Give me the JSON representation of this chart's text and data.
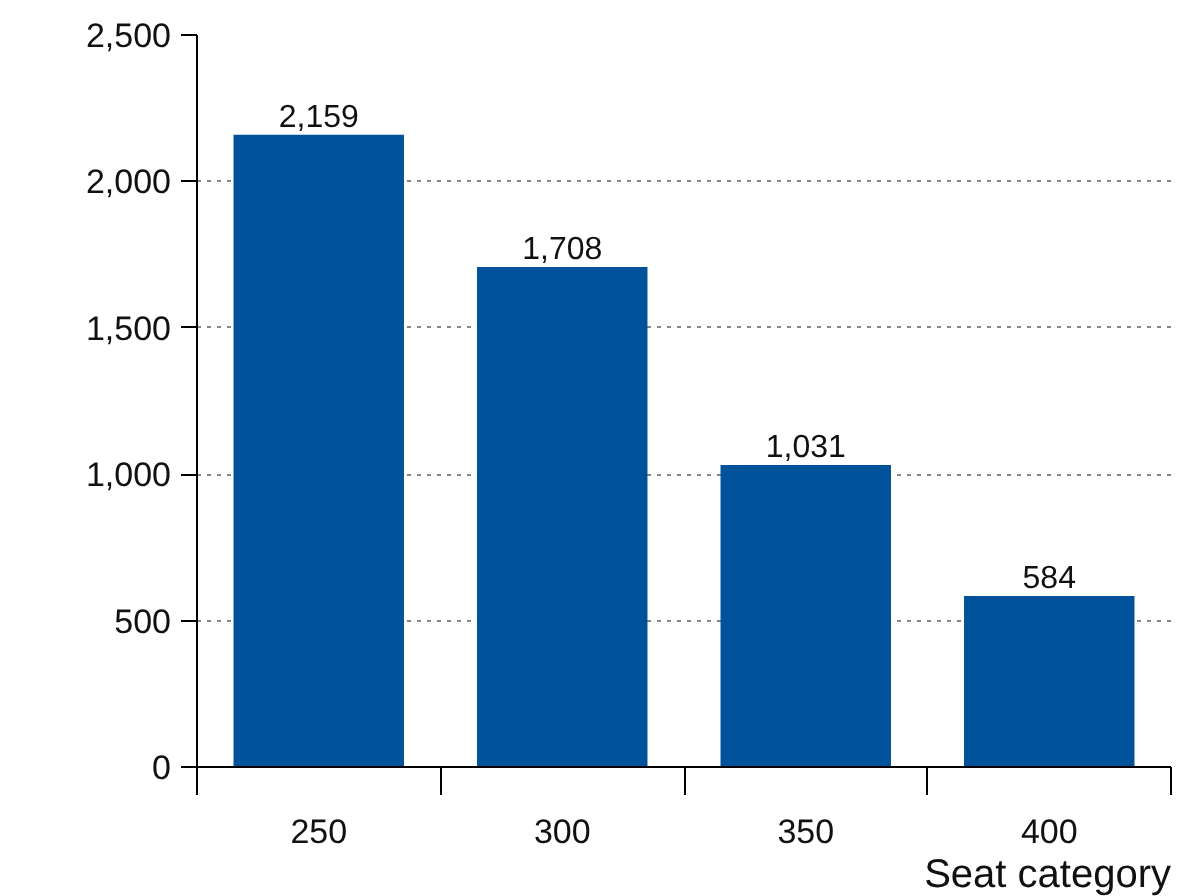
{
  "chart_data": {
    "type": "bar",
    "xlabel": "Seat category",
    "categories": [
      "250",
      "300",
      "350",
      "400"
    ],
    "values": [
      2159,
      1708,
      1031,
      584
    ],
    "color": "#00529b",
    "value_labels": [
      "2,159",
      "1,708",
      "1,031",
      "584"
    ],
    "ylim": [
      0,
      2500
    ],
    "yticks": [
      0,
      500,
      {
        "value": 1000,
        "label": "1,000"
      },
      {
        "value": 1500,
        "label": "1,500"
      },
      {
        "value": 2000,
        "label": "2,000"
      },
      {
        "value": 2500,
        "label": "2,500"
      }
    ],
    "grid": "y"
  }
}
